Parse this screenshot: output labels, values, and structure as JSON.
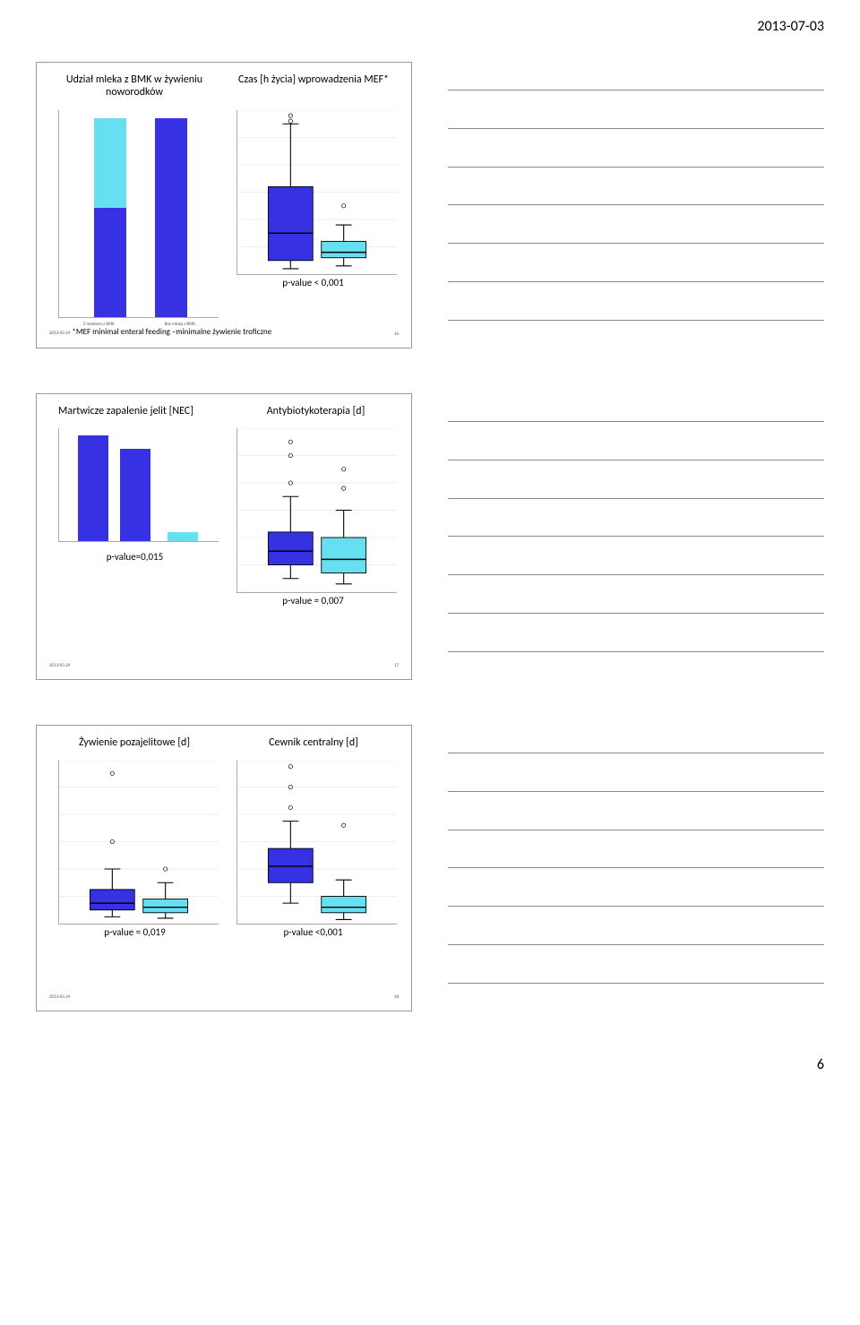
{
  "header_date": "2013-07-03",
  "footer_date": "2013-05-24",
  "page_number": "6",
  "colors": {
    "blue": "#3632e4",
    "cyan": "#66e0f0",
    "axis": "#aaaaaa",
    "line": "#888888"
  },
  "slide1": {
    "footer_num": "16",
    "left": {
      "title": "Udział mleka z BMK w żywieniu noworodków",
      "type": "stacked-bar",
      "x1": "Z  mlekiem z BMK",
      "x2": "Bez mleka z  BMK",
      "bars": [
        {
          "blue": 0.55,
          "cyan": 0.45
        },
        {
          "blue": 1.0,
          "cyan": 0.0
        }
      ]
    },
    "right": {
      "title": "Czas [h życia] wprowadzenia MEF*",
      "type": "boxplot",
      "ylim": [
        0,
        60
      ],
      "yticks": [
        0,
        10,
        20,
        30,
        40,
        50,
        60
      ],
      "boxes": [
        {
          "q1": 5,
          "med": 15,
          "q3": 32,
          "lw": 2,
          "uw": 55,
          "outliers": [
            58,
            56
          ],
          "color_key": "blue"
        },
        {
          "q1": 6,
          "med": 8,
          "q3": 12,
          "lw": 3,
          "uw": 18,
          "outliers": [
            25
          ],
          "color_key": "cyan"
        }
      ],
      "pval": "p-value < 0,001"
    },
    "footnote": "*MEF minimal enteral feeding –minimalne żywienie troficzne"
  },
  "slide2": {
    "footer_num": "17",
    "left": {
      "title": "Martwicze zapalenie jelit [NEC]",
      "type": "grouped-bar",
      "bars": [
        {
          "h": 0.98,
          "color_key": "blue"
        },
        {
          "h": 0.85,
          "color_key": "blue"
        },
        {
          "h": 0.08,
          "color_key": "cyan"
        }
      ],
      "pval": "p-value=0,015"
    },
    "right": {
      "title": "Antybiotykoterapia [d]",
      "type": "boxplot",
      "ylim": [
        0,
        60
      ],
      "yticks": [
        0,
        10,
        20,
        30,
        40,
        50,
        60
      ],
      "boxes": [
        {
          "q1": 10,
          "med": 15,
          "q3": 22,
          "lw": 5,
          "uw": 35,
          "outliers": [
            55,
            50,
            40
          ],
          "color_key": "blue"
        },
        {
          "q1": 7,
          "med": 12,
          "q3": 20,
          "lw": 3,
          "uw": 30,
          "outliers": [
            45,
            38
          ],
          "color_key": "cyan"
        }
      ],
      "pval": "p-value = 0,007"
    }
  },
  "slide3": {
    "footer_num": "18",
    "left": {
      "title": "Żywienie pozajelitowe [d]",
      "type": "boxplot",
      "ylim": [
        0,
        120
      ],
      "yticks": [
        0,
        20,
        40,
        60,
        80,
        100,
        120
      ],
      "boxes": [
        {
          "q1": 10,
          "med": 15,
          "q3": 25,
          "lw": 5,
          "uw": 40,
          "outliers": [
            110,
            60
          ],
          "color_key": "blue"
        },
        {
          "q1": 8,
          "med": 12,
          "q3": 18,
          "lw": 4,
          "uw": 30,
          "outliers": [
            40
          ],
          "color_key": "cyan"
        }
      ],
      "pval": "p-value = 0,019"
    },
    "right": {
      "title": "Cewnik centralny [d]",
      "type": "boxplot",
      "ylim": [
        0,
        120
      ],
      "yticks": [
        0,
        20,
        40,
        60,
        80,
        100,
        120
      ],
      "boxes": [
        {
          "q1": 30,
          "med": 42,
          "q3": 55,
          "lw": 15,
          "uw": 75,
          "outliers": [
            115,
            100,
            85
          ],
          "color_key": "blue"
        },
        {
          "q1": 8,
          "med": 12,
          "q3": 20,
          "lw": 3,
          "uw": 32,
          "outliers": [
            72
          ],
          "color_key": "cyan"
        }
      ],
      "pval": "p-value <0,001"
    }
  }
}
